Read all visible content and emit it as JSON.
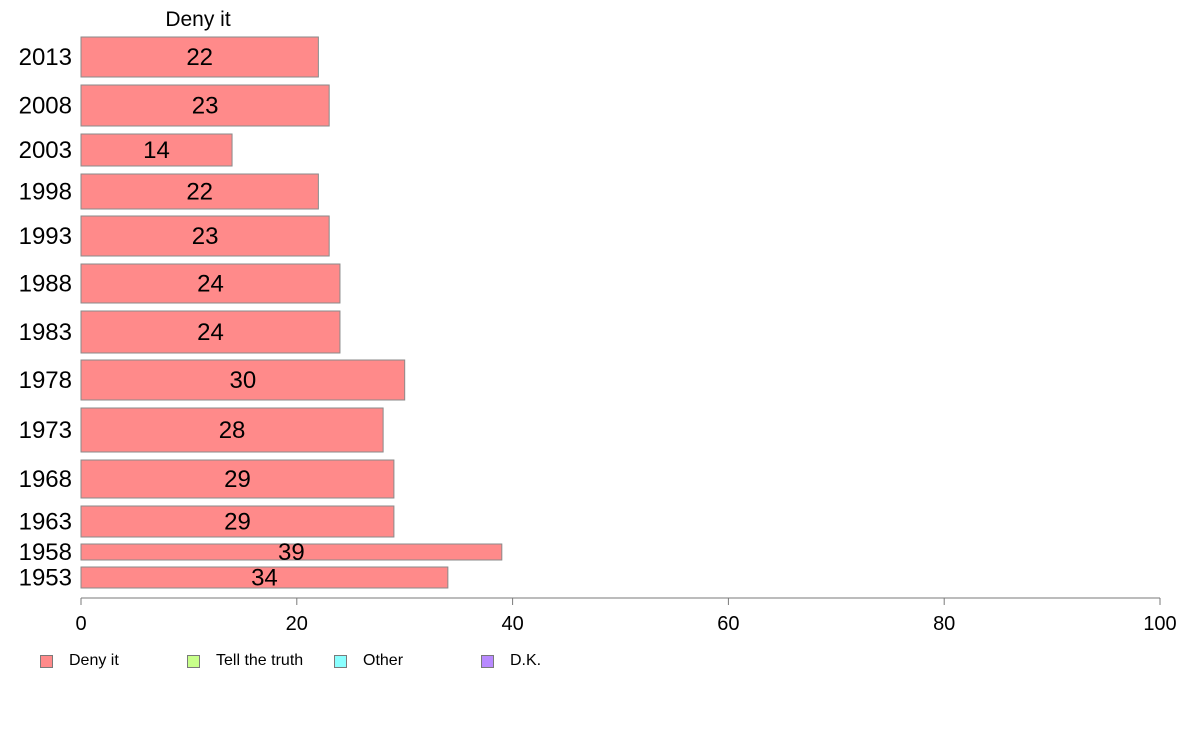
{
  "chart_data": {
    "type": "bar",
    "orientation": "horizontal",
    "title": "Deny it",
    "categories": [
      "2013",
      "2008",
      "2003",
      "1998",
      "1993",
      "1988",
      "1983",
      "1978",
      "1973",
      "1968",
      "1963",
      "1958",
      "1953"
    ],
    "series": [
      {
        "name": "Deny it",
        "values": [
          22,
          23,
          14,
          22,
          23,
          24,
          24,
          30,
          28,
          29,
          29,
          39,
          34
        ],
        "color": "#ff8a8a"
      }
    ],
    "data_labels": [
      "22",
      "23",
      "14",
      "22",
      "23",
      "24",
      "24",
      "30",
      "28",
      "29",
      "29",
      "39",
      "34"
    ],
    "xlim": [
      0,
      100
    ],
    "x_ticks": [
      0,
      20,
      40,
      60,
      80,
      100
    ],
    "x_tick_labels": [
      "0",
      "20",
      "40",
      "60",
      "80",
      "100"
    ],
    "grid": false,
    "legend_position": "bottom-left"
  },
  "legend": [
    {
      "label": "Deny it",
      "color": "#ff8a8a"
    },
    {
      "label": "Tell the truth",
      "color": "#c8ff8a"
    },
    {
      "label": "Other",
      "color": "#8affff"
    },
    {
      "label": "D.K.",
      "color": "#b88aff"
    }
  ]
}
